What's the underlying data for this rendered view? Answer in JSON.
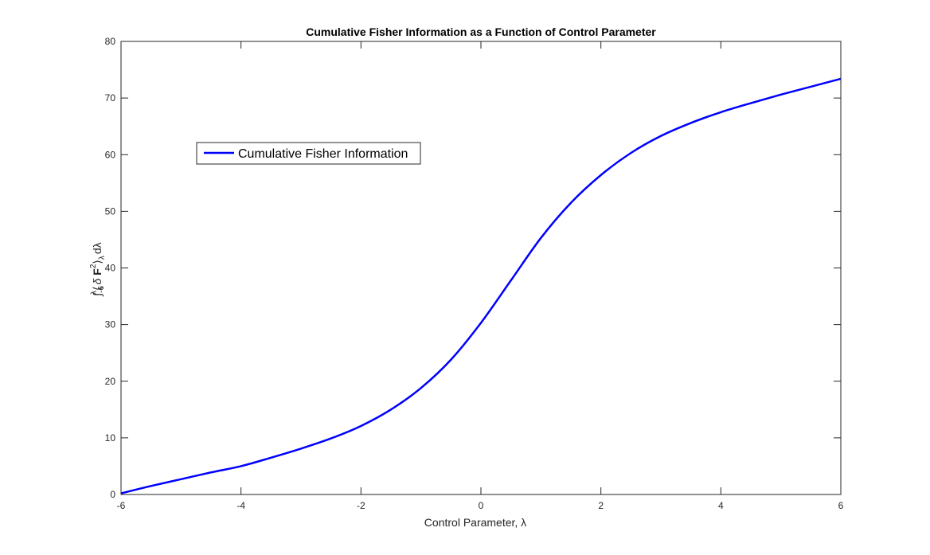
{
  "chart_data": {
    "type": "line",
    "title": "Cumulative Fisher Information as a Function of Control Parameter",
    "xlabel": "Control Parameter, λ",
    "ylabel": {
      "integral": "∫",
      "upper_limit": "λ",
      "lower_limit": "-6",
      "open_bracket": "⟨",
      "delta": "δ",
      "symbol": "F",
      "exponent": "2",
      "close_bracket": "⟩",
      "subscript": "λ",
      "differential": "dλ"
    },
    "xlim": [
      -6,
      6
    ],
    "ylim": [
      0,
      80
    ],
    "xticks": [
      -6,
      -4,
      -2,
      0,
      2,
      4,
      6
    ],
    "yticks": [
      0,
      10,
      20,
      30,
      40,
      50,
      60,
      70,
      80
    ],
    "grid": false,
    "legend_position": "upper-left",
    "series": [
      {
        "name": "Cumulative Fisher Information",
        "color": "#0000ff",
        "x": [
          -6,
          -5.5,
          -5,
          -4.5,
          -4,
          -3.5,
          -3,
          -2.5,
          -2,
          -1.5,
          -1,
          -0.5,
          0,
          0.5,
          1,
          1.5,
          2,
          2.5,
          3,
          3.5,
          4,
          4.5,
          5,
          5.5,
          6
        ],
        "y": [
          0.2,
          1.5,
          2.7,
          3.9,
          5.0,
          6.5,
          8.1,
          9.9,
          12.1,
          15.0,
          18.8,
          23.8,
          30.3,
          37.8,
          45.3,
          51.5,
          56.4,
          60.3,
          63.3,
          65.6,
          67.5,
          69.1,
          70.6,
          72.0,
          73.4
        ]
      }
    ]
  }
}
